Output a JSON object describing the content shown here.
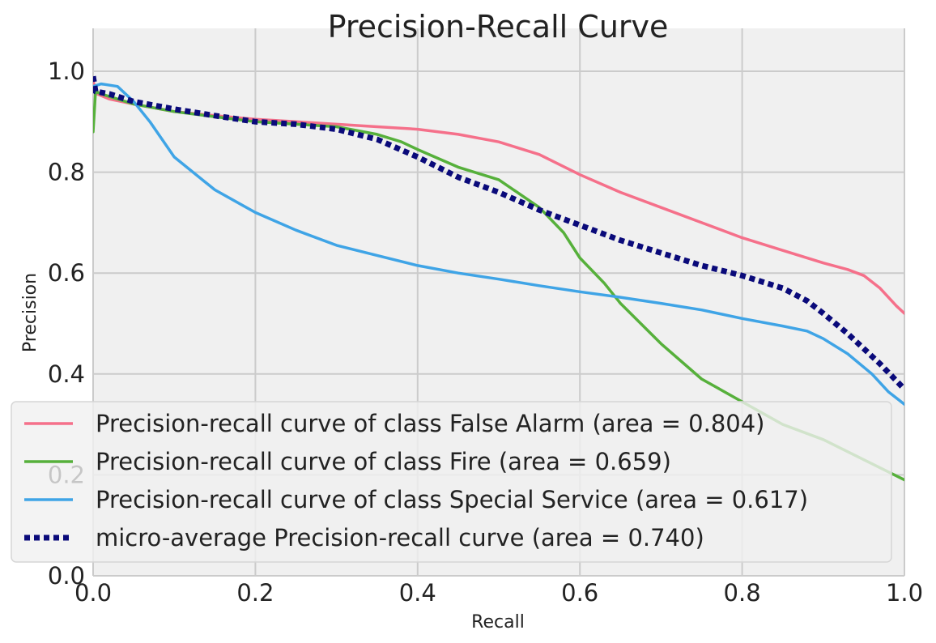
{
  "chart_data": {
    "type": "line",
    "title": "Precision-Recall Curve",
    "xlabel": "Recall",
    "ylabel": "Precision",
    "xlim": [
      0.0,
      1.0
    ],
    "ylim": [
      0.0,
      1.0
    ],
    "xticks": [
      "0.0",
      "0.2",
      "0.4",
      "0.6",
      "0.8",
      "1.0"
    ],
    "yticks": [
      "0.0",
      "0.2",
      "0.4",
      "0.6",
      "0.8",
      "1.0"
    ],
    "grid": true,
    "legend_position": "lower-left",
    "series": [
      {
        "name": "Precision-recall curve of class False Alarm (area = 0.804)",
        "color": "#f5708a",
        "style": "solid",
        "x": [
          0.0,
          0.005,
          0.02,
          0.05,
          0.1,
          0.15,
          0.2,
          0.25,
          0.3,
          0.35,
          0.4,
          0.45,
          0.5,
          0.55,
          0.6,
          0.65,
          0.7,
          0.75,
          0.8,
          0.85,
          0.9,
          0.93,
          0.95,
          0.97,
          0.99,
          1.0
        ],
        "y": [
          0.98,
          0.955,
          0.945,
          0.935,
          0.92,
          0.912,
          0.905,
          0.9,
          0.895,
          0.89,
          0.885,
          0.875,
          0.86,
          0.835,
          0.795,
          0.76,
          0.73,
          0.7,
          0.67,
          0.645,
          0.62,
          0.607,
          0.595,
          0.57,
          0.535,
          0.52
        ]
      },
      {
        "name": "Precision-recall curve of class Fire (area = 0.659)",
        "color": "#56b03b",
        "style": "solid",
        "x": [
          0.0,
          0.003,
          0.01,
          0.05,
          0.1,
          0.15,
          0.2,
          0.25,
          0.3,
          0.35,
          0.38,
          0.4,
          0.45,
          0.5,
          0.55,
          0.58,
          0.6,
          0.63,
          0.65,
          0.7,
          0.75,
          0.8,
          0.85,
          0.9,
          0.95,
          1.0
        ],
        "y": [
          0.88,
          0.96,
          0.955,
          0.935,
          0.92,
          0.91,
          0.9,
          0.895,
          0.89,
          0.875,
          0.86,
          0.845,
          0.81,
          0.785,
          0.73,
          0.68,
          0.63,
          0.58,
          0.54,
          0.46,
          0.39,
          0.345,
          0.3,
          0.27,
          0.23,
          0.19
        ]
      },
      {
        "name": "Precision-recall curve of class Special Service (area = 0.617)",
        "color": "#3fa4e6",
        "style": "solid",
        "x": [
          0.0,
          0.01,
          0.03,
          0.05,
          0.07,
          0.1,
          0.15,
          0.2,
          0.25,
          0.3,
          0.35,
          0.4,
          0.45,
          0.5,
          0.55,
          0.6,
          0.65,
          0.7,
          0.75,
          0.8,
          0.85,
          0.88,
          0.9,
          0.93,
          0.96,
          0.98,
          1.0
        ],
        "y": [
          0.97,
          0.975,
          0.97,
          0.94,
          0.9,
          0.83,
          0.765,
          0.72,
          0.685,
          0.655,
          0.635,
          0.615,
          0.6,
          0.588,
          0.575,
          0.563,
          0.552,
          0.54,
          0.527,
          0.51,
          0.495,
          0.485,
          0.47,
          0.44,
          0.4,
          0.365,
          0.34
        ]
      },
      {
        "name": "micro-average Precision-recall curve (area = 0.740)",
        "color": "#0a0a7a",
        "style": "dotted",
        "x": [
          0.0,
          0.003,
          0.02,
          0.05,
          0.1,
          0.15,
          0.2,
          0.25,
          0.3,
          0.35,
          0.4,
          0.45,
          0.5,
          0.55,
          0.6,
          0.65,
          0.7,
          0.75,
          0.8,
          0.85,
          0.88,
          0.9,
          0.93,
          0.95,
          0.97,
          1.0
        ],
        "y": [
          0.99,
          0.96,
          0.955,
          0.94,
          0.925,
          0.912,
          0.9,
          0.895,
          0.885,
          0.865,
          0.83,
          0.79,
          0.76,
          0.725,
          0.695,
          0.665,
          0.64,
          0.615,
          0.595,
          0.57,
          0.545,
          0.52,
          0.48,
          0.45,
          0.42,
          0.37
        ]
      }
    ]
  }
}
